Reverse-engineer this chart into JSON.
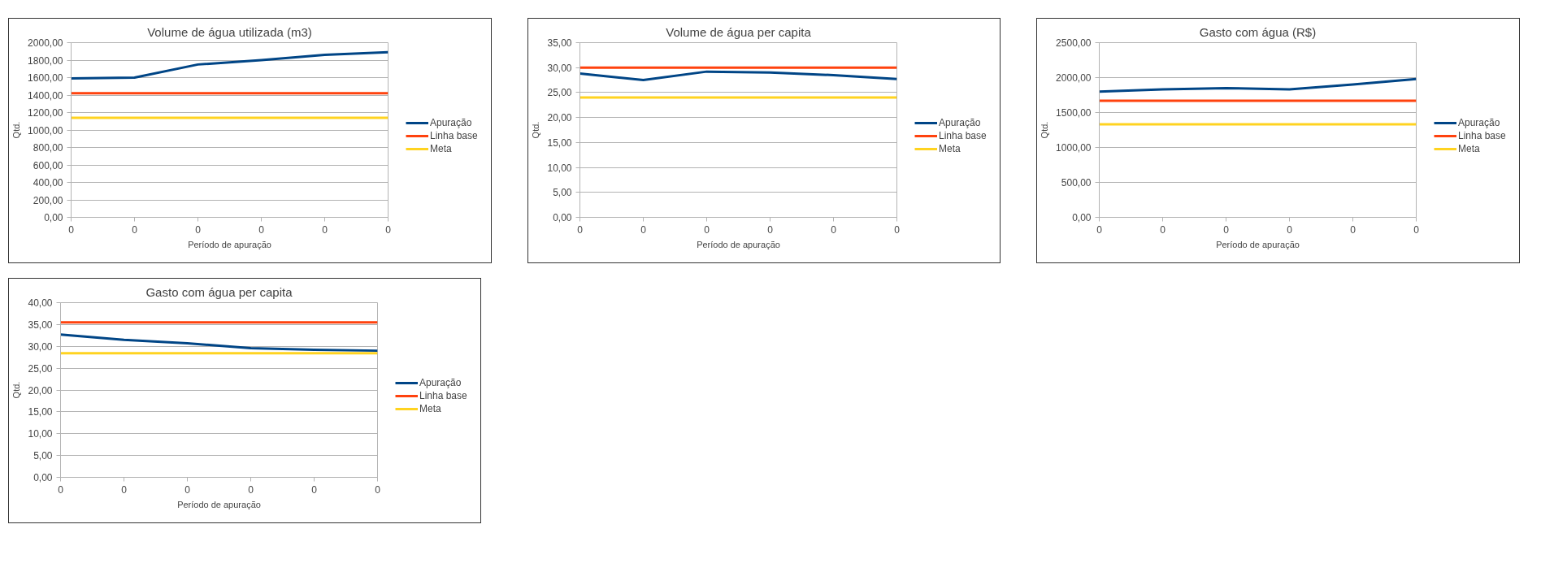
{
  "chart_data": [
    {
      "type": "line",
      "title": "Volume de água utilizada (m3)",
      "xlabel": "Período de apuração",
      "ylabel": "Qtd.",
      "categories": [
        "0",
        "0",
        "0",
        "0",
        "0",
        "0"
      ],
      "ylim": [
        0,
        2000
      ],
      "yticks": [
        {
          "value": 0,
          "label": "0,00"
        },
        {
          "value": 200,
          "label": "200,00"
        },
        {
          "value": 400,
          "label": "400,00"
        },
        {
          "value": 600,
          "label": "600,00"
        },
        {
          "value": 800,
          "label": "800,00"
        },
        {
          "value": 1000,
          "label": "1000,00"
        },
        {
          "value": 1200,
          "label": "1200,00"
        },
        {
          "value": 1400,
          "label": "1400,00"
        },
        {
          "value": 1600,
          "label": "1600,00"
        },
        {
          "value": 1800,
          "label": "1800,00"
        },
        {
          "value": 2000,
          "label": "2000,00"
        }
      ],
      "grid": "y",
      "legend": "right",
      "series": [
        {
          "name": "Apuração",
          "color": "#004586",
          "values": [
            1590,
            1600,
            1750,
            1800,
            1860,
            1890
          ]
        },
        {
          "name": "Linha base",
          "color": "#ff420e",
          "values": [
            1420,
            1420,
            1420,
            1420,
            1420,
            1420
          ]
        },
        {
          "name": "Meta",
          "color": "#ffd320",
          "values": [
            1140,
            1140,
            1140,
            1140,
            1140,
            1140
          ]
        }
      ]
    },
    {
      "type": "line",
      "title": "Volume de água per capita",
      "xlabel": "Período de apuração",
      "ylabel": "Qtd.",
      "categories": [
        "0",
        "0",
        "0",
        "0",
        "0",
        "0"
      ],
      "ylim": [
        0,
        35
      ],
      "yticks": [
        {
          "value": 0,
          "label": "0,00"
        },
        {
          "value": 5,
          "label": "5,00"
        },
        {
          "value": 10,
          "label": "10,00"
        },
        {
          "value": 15,
          "label": "15,00"
        },
        {
          "value": 20,
          "label": "20,00"
        },
        {
          "value": 25,
          "label": "25,00"
        },
        {
          "value": 30,
          "label": "30,00"
        },
        {
          "value": 35,
          "label": "35,00"
        }
      ],
      "grid": "y",
      "legend": "right",
      "series": [
        {
          "name": "Apuração",
          "color": "#004586",
          "values": [
            28.8,
            27.5,
            29.2,
            29.0,
            28.5,
            27.7
          ]
        },
        {
          "name": "Linha base",
          "color": "#ff420e",
          "values": [
            30.0,
            30.0,
            30.0,
            30.0,
            30.0,
            30.0
          ]
        },
        {
          "name": "Meta",
          "color": "#ffd320",
          "values": [
            24.0,
            24.0,
            24.0,
            24.0,
            24.0,
            24.0
          ]
        }
      ]
    },
    {
      "type": "line",
      "title": "Gasto com água (R$)",
      "xlabel": "Período de apuração",
      "ylabel": "Qtd.",
      "categories": [
        "0",
        "0",
        "0",
        "0",
        "0",
        "0"
      ],
      "ylim": [
        0,
        2500
      ],
      "yticks": [
        {
          "value": 0,
          "label": "0,00"
        },
        {
          "value": 500,
          "label": "500,00"
        },
        {
          "value": 1000,
          "label": "1000,00"
        },
        {
          "value": 1500,
          "label": "1500,00"
        },
        {
          "value": 2000,
          "label": "2000,00"
        },
        {
          "value": 2500,
          "label": "2500,00"
        }
      ],
      "grid": "y",
      "legend": "right",
      "series": [
        {
          "name": "Apuração",
          "color": "#004586",
          "values": [
            1800,
            1830,
            1850,
            1830,
            1900,
            1980
          ]
        },
        {
          "name": "Linha base",
          "color": "#ff420e",
          "values": [
            1670,
            1670,
            1670,
            1670,
            1670,
            1670
          ]
        },
        {
          "name": "Meta",
          "color": "#ffd320",
          "values": [
            1330,
            1330,
            1330,
            1330,
            1330,
            1330
          ]
        }
      ]
    },
    {
      "type": "line",
      "title": "Gasto com água per capita",
      "xlabel": "Período de apuração",
      "ylabel": "Qtd.",
      "categories": [
        "0",
        "0",
        "0",
        "0",
        "0",
        "0"
      ],
      "ylim": [
        0,
        40
      ],
      "yticks": [
        {
          "value": 0,
          "label": "0,00"
        },
        {
          "value": 5,
          "label": "5,00"
        },
        {
          "value": 10,
          "label": "10,00"
        },
        {
          "value": 15,
          "label": "15,00"
        },
        {
          "value": 20,
          "label": "20,00"
        },
        {
          "value": 25,
          "label": "25,00"
        },
        {
          "value": 30,
          "label": "30,00"
        },
        {
          "value": 35,
          "label": "35,00"
        },
        {
          "value": 40,
          "label": "40,00"
        }
      ],
      "grid": "y",
      "legend": "right",
      "series": [
        {
          "name": "Apuração",
          "color": "#004586",
          "values": [
            32.7,
            31.5,
            30.7,
            29.6,
            29.2,
            29.0
          ]
        },
        {
          "name": "Linha base",
          "color": "#ff420e",
          "values": [
            35.5,
            35.5,
            35.5,
            35.5,
            35.5,
            35.5
          ]
        },
        {
          "name": "Meta",
          "color": "#ffd320",
          "values": [
            28.4,
            28.4,
            28.4,
            28.4,
            28.4,
            28.4
          ]
        }
      ]
    }
  ]
}
